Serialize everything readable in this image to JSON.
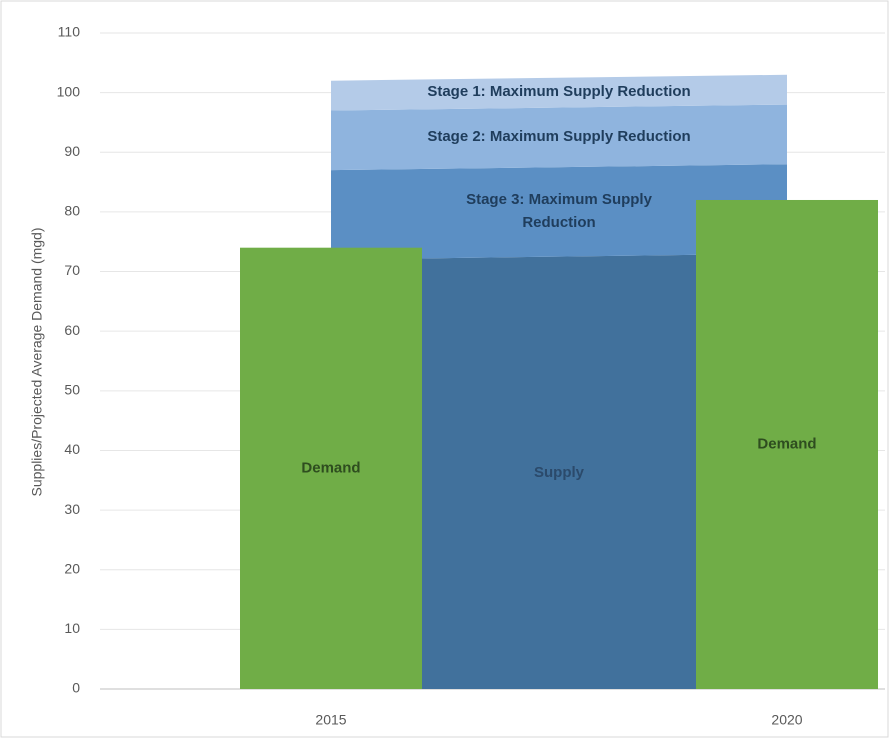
{
  "chart_data": {
    "type": "bar",
    "y_label": "Supplies/Projected Average Demand (mgd)",
    "categories": [
      "2015",
      "2020"
    ],
    "ylim": [
      0,
      110
    ],
    "yticks": [
      0,
      10,
      20,
      30,
      40,
      50,
      60,
      70,
      80,
      90,
      100,
      110
    ],
    "grid": true,
    "bars": {
      "name": "Demand",
      "color": "#70ad47",
      "values": [
        74,
        82
      ]
    },
    "stacked_areas": [
      {
        "name": "Supply",
        "color": "#41719c",
        "values": [
          72,
          73
        ]
      },
      {
        "name": "Stage 3: Maximum Supply Reduction",
        "color": "#5b8fc4",
        "values": [
          15,
          15
        ]
      },
      {
        "name": "Stage 2: Maximum Supply Reduction",
        "color": "#8fb4de",
        "values": [
          10,
          10
        ]
      },
      {
        "name": "Stage 1: Maximum Supply Reduction",
        "color": "#b4cbe8",
        "values": [
          5,
          5
        ]
      }
    ]
  }
}
